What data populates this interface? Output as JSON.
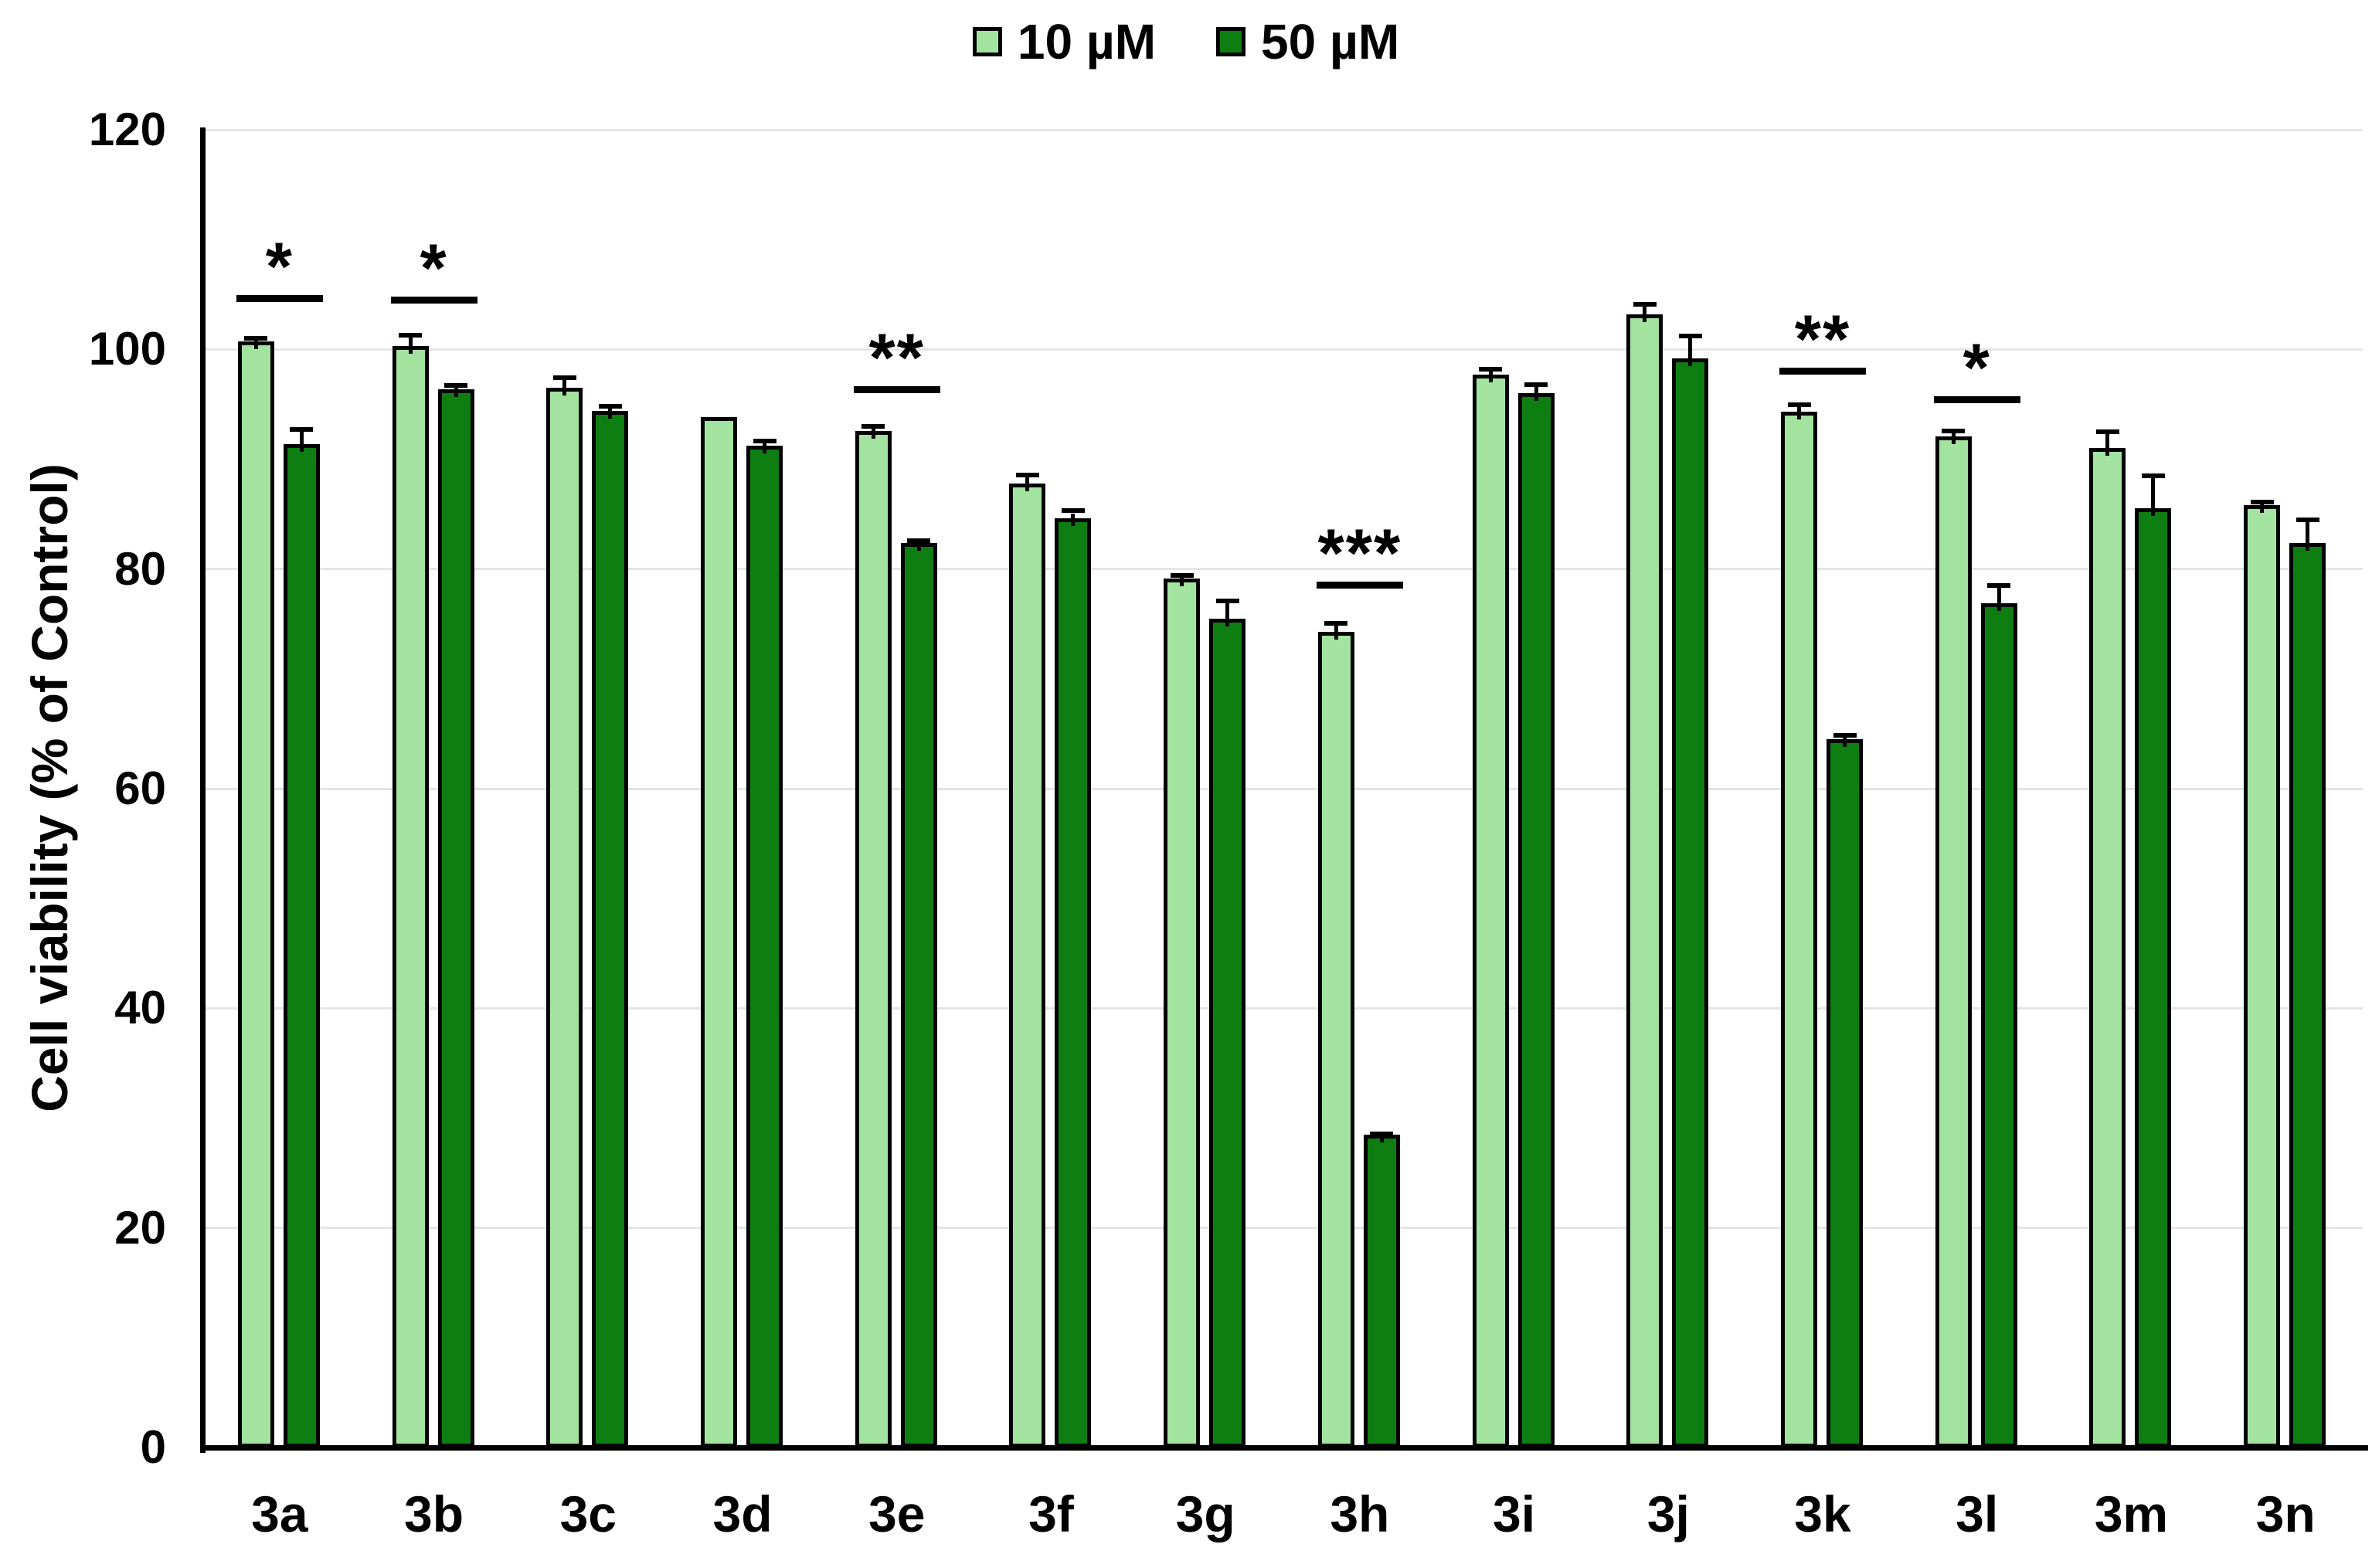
{
  "chart_data": {
    "type": "bar",
    "title": "",
    "xlabel": "",
    "ylabel": "Cell viability (% of Control)",
    "ylim": [
      0,
      120
    ],
    "yticks": [
      0,
      20,
      40,
      60,
      80,
      100,
      120
    ],
    "grid": true,
    "legend_position": "top-center",
    "categories": [
      "3a",
      "3b",
      "3c",
      "3d",
      "3e",
      "3f",
      "3g",
      "3h",
      "3i",
      "3j",
      "3k",
      "3l",
      "3m",
      "3n"
    ],
    "series": [
      {
        "name": "10 µM",
        "color": "#A3E3A0",
        "values": [
          100.7,
          100.3,
          96.5,
          93.8,
          92.6,
          87.8,
          79.1,
          74.3,
          97.7,
          103.2,
          94.3,
          92.1,
          91.0,
          85.8
        ],
        "errors": [
          0.5,
          1.2,
          1.1,
          0.0,
          0.6,
          1.0,
          0.5,
          1.0,
          0.7,
          1.1,
          0.9,
          0.7,
          1.7,
          0.5
        ]
      },
      {
        "name": "50 µM",
        "color": "#0E7D12",
        "values": [
          91.4,
          96.4,
          94.4,
          91.2,
          82.4,
          84.6,
          75.5,
          28.5,
          96.0,
          99.2,
          64.5,
          76.9,
          85.5,
          82.4
        ],
        "errors": [
          1.5,
          0.5,
          0.6,
          0.7,
          0.4,
          0.9,
          1.8,
          0.3,
          1.0,
          2.2,
          0.6,
          1.8,
          3.2,
          2.3
        ]
      }
    ],
    "significance": [
      {
        "category": "3a",
        "label": "*",
        "line_y": 104.3
      },
      {
        "category": "3b",
        "label": "*",
        "line_y": 104.2
      },
      {
        "category": "3e",
        "label": "**",
        "line_y": 96.0
      },
      {
        "category": "3h",
        "label": "***",
        "line_y": 78.2
      },
      {
        "category": "3k",
        "label": "**",
        "line_y": 97.7
      },
      {
        "category": "3l",
        "label": "*",
        "line_y": 95.1
      }
    ],
    "bar_border_color": "#000000",
    "error_bar_color": "#000000",
    "gridline_color": "#E5E5E5",
    "axis_color": "#000000",
    "background": "#FFFFFF"
  }
}
